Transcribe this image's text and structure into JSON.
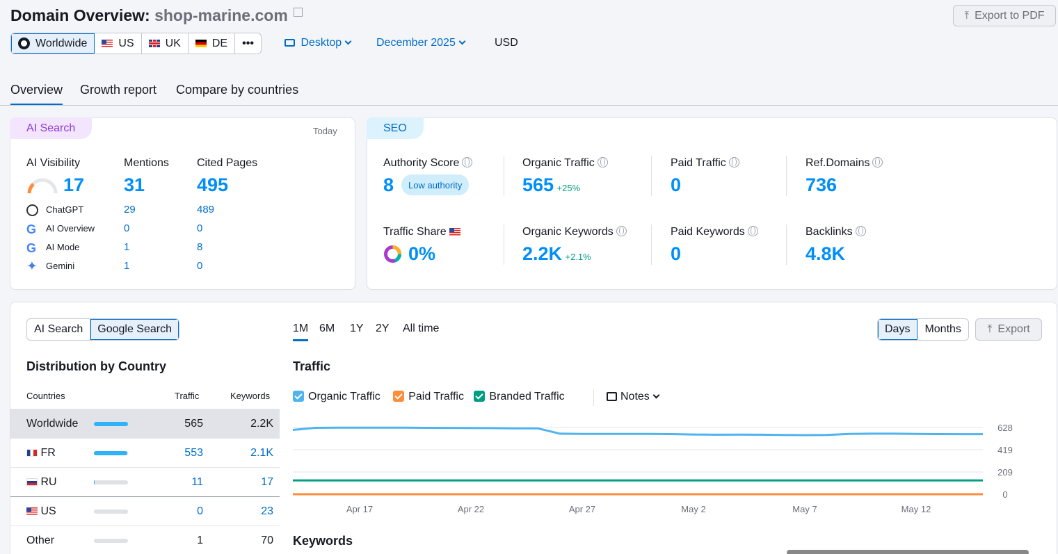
{
  "header": {
    "title_prefix": "Domain Overview:",
    "domain": "shop-marine.com",
    "export_pdf": "Export to PDF"
  },
  "regions": {
    "items": [
      "Worldwide",
      "US",
      "UK",
      "DE"
    ],
    "more": "•••"
  },
  "filters": {
    "device": "Desktop",
    "date": "December 2025",
    "currency": "USD"
  },
  "tabs": [
    "Overview",
    "Growth report",
    "Compare by countries"
  ],
  "ai_search": {
    "tag": "AI Search",
    "today": "Today",
    "cols": [
      "AI Visibility",
      "Mentions",
      "Cited Pages"
    ],
    "visibility": "17",
    "mentions": "31",
    "cited": "495",
    "rows": [
      {
        "name": "ChatGPT",
        "mentions": "29",
        "cited": "489",
        "icon": "chatgpt-icon"
      },
      {
        "name": "AI Overview",
        "mentions": "0",
        "cited": "0",
        "icon": "google-icon"
      },
      {
        "name": "AI Mode",
        "mentions": "1",
        "cited": "8",
        "icon": "google-icon"
      },
      {
        "name": "Gemini",
        "mentions": "1",
        "cited": "0",
        "icon": "gemini-icon"
      }
    ]
  },
  "seo": {
    "tag": "SEO",
    "authority_label": "Authority Score",
    "authority_value": "8",
    "authority_badge": "Low authority",
    "organic_label": "Organic Traffic",
    "organic_value": "565",
    "organic_delta": "+25%",
    "paid_label": "Paid Traffic",
    "paid_value": "0",
    "refdomains_label": "Ref.Domains",
    "refdomains_value": "736",
    "share_label": "Traffic Share",
    "share_value": "0%",
    "keywords_label": "Organic Keywords",
    "keywords_value": "2.2K",
    "keywords_delta": "+2.1%",
    "paid_kw_label": "Paid Keywords",
    "paid_kw_value": "0",
    "backlinks_label": "Backlinks",
    "backlinks_value": "4.8K"
  },
  "bottom": {
    "source_toggle": [
      "AI Search",
      "Google Search"
    ],
    "dist_title": "Distribution by Country",
    "table_headers": [
      "Countries",
      "Traffic",
      "Keywords"
    ],
    "countries": [
      {
        "name": "Worldwide",
        "traffic": "565",
        "keywords": "2.2K",
        "share": 1.0
      },
      {
        "name": "FR",
        "traffic": "553",
        "keywords": "2.1K",
        "share": 0.98
      },
      {
        "name": "RU",
        "traffic": "11",
        "keywords": "17",
        "share": 0.02
      },
      {
        "name": "US",
        "traffic": "0",
        "keywords": "23",
        "share": 0.0
      },
      {
        "name": "Other",
        "traffic": "1",
        "keywords": "70",
        "share": 0.0
      }
    ],
    "ranges": [
      "1M",
      "6M",
      "1Y",
      "2Y",
      "All time"
    ],
    "granularity": [
      "Days",
      "Months"
    ],
    "export": "Export",
    "traffic_title": "Traffic",
    "legend": [
      "Organic Traffic",
      "Paid Traffic",
      "Branded Traffic"
    ],
    "notes": "Notes",
    "keywords_title": "Keywords"
  },
  "colors": {
    "organic": "#4fb3ef",
    "paid": "#ff8c3a",
    "branded": "#009f81",
    "accent": "#006dca"
  },
  "chart_data": {
    "type": "line",
    "x": [
      "Apr 14",
      "Apr 15",
      "Apr 16",
      "Apr 17",
      "Apr 18",
      "Apr 19",
      "Apr 20",
      "Apr 21",
      "Apr 22",
      "Apr 23",
      "Apr 24",
      "Apr 25",
      "Apr 26",
      "Apr 27",
      "Apr 28",
      "Apr 29",
      "Apr 30",
      "May 1",
      "May 2",
      "May 3",
      "May 4",
      "May 5",
      "May 6",
      "May 7",
      "May 8",
      "May 9",
      "May 10",
      "May 11",
      "May 12",
      "May 13",
      "May 14",
      "May 15"
    ],
    "series": [
      {
        "name": "Organic Traffic",
        "values": [
          605,
          625,
          627,
          627,
          627,
          626,
          625,
          624,
          623,
          622,
          620,
          620,
          570,
          568,
          568,
          568,
          567,
          566,
          562,
          560,
          561,
          560,
          558,
          556,
          558,
          568,
          570,
          570,
          568,
          566,
          565,
          565
        ]
      },
      {
        "name": "Paid Traffic",
        "values": [
          0,
          0,
          0,
          0,
          0,
          0,
          0,
          0,
          0,
          0,
          0,
          0,
          0,
          0,
          0,
          0,
          0,
          0,
          0,
          0,
          0,
          0,
          0,
          0,
          0,
          0,
          0,
          0,
          0,
          0,
          0,
          0
        ]
      },
      {
        "name": "Branded Traffic",
        "values": [
          130,
          130,
          130,
          130,
          130,
          130,
          130,
          130,
          130,
          130,
          130,
          130,
          130,
          130,
          130,
          130,
          130,
          130,
          130,
          130,
          130,
          130,
          130,
          130,
          130,
          130,
          130,
          130,
          130,
          130,
          130,
          130
        ]
      }
    ],
    "x_ticks": [
      "Apr 17",
      "Apr 22",
      "Apr 27",
      "May 2",
      "May 7",
      "May 12"
    ],
    "y_ticks": [
      "628",
      "419",
      "209",
      "0"
    ],
    "ylim": [
      0,
      628
    ],
    "grid": true
  }
}
